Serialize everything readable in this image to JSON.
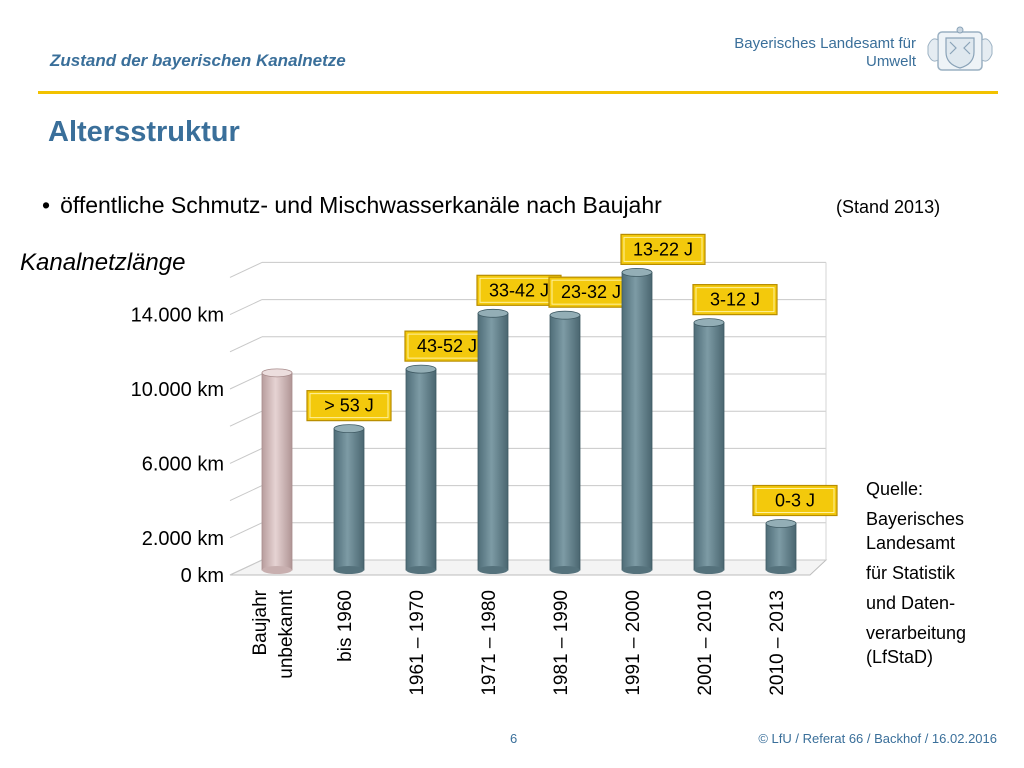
{
  "header": {
    "title": "Zustand der bayerischen Kanalnetze",
    "org_line1": "Bayerisches Landesamt für",
    "org_line2": "Umwelt",
    "crest_icon": "bavarian-coat-of-arms-icon"
  },
  "page_title": "Altersstruktur",
  "bullet": {
    "text": "öffentliche Schmutz- und Mischwasserkanäle nach Baujahr",
    "stand": "(Stand 2013)"
  },
  "source": {
    "lines": [
      "Quelle:",
      "Bayerisches",
      "Landesamt",
      "für Statistik",
      "und Daten-",
      "verarbeitung",
      "(LfStaD)"
    ]
  },
  "footer": {
    "page": "6",
    "copyright": "© LfU / Referat 66 / Backhof / 16.02.2016"
  },
  "colors": {
    "accent": "#3a6f9a",
    "rule": "#f2c200",
    "bar": "#6e8f9a",
    "bar_unknown": "#d4bcbc",
    "label_box": "#f3c90c"
  },
  "chart_data": {
    "type": "bar",
    "title": "",
    "ylabel": "Kanalnetzlänge",
    "ylim": [
      0,
      17000
    ],
    "yticks": [
      {
        "value": 0,
        "label": "0 km"
      },
      {
        "value": 2000,
        "label": "2.000 km"
      },
      {
        "value": 6000,
        "label": "6.000 km"
      },
      {
        "value": 10000,
        "label": "10.000 km"
      },
      {
        "value": 14000,
        "label": "14.000 km"
      }
    ],
    "grid": true,
    "categories": [
      [
        "Baujahr",
        "unbekannt"
      ],
      [
        "bis 1960"
      ],
      [
        "1961 – 1970"
      ],
      [
        "1971 – 1980"
      ],
      [
        "1981 – 1990"
      ],
      [
        "1991 – 2000"
      ],
      [
        "2001 – 2010"
      ],
      [
        "2010 – 2013"
      ]
    ],
    "values": [
      10600,
      7600,
      10800,
      13800,
      13700,
      16000,
      13300,
      2500
    ],
    "bar_labels": [
      "",
      "> 53 J",
      "43-52 J",
      "33-42 J",
      "23-32 J",
      "13-22 J",
      "3-12 J",
      "0-3 J"
    ]
  }
}
